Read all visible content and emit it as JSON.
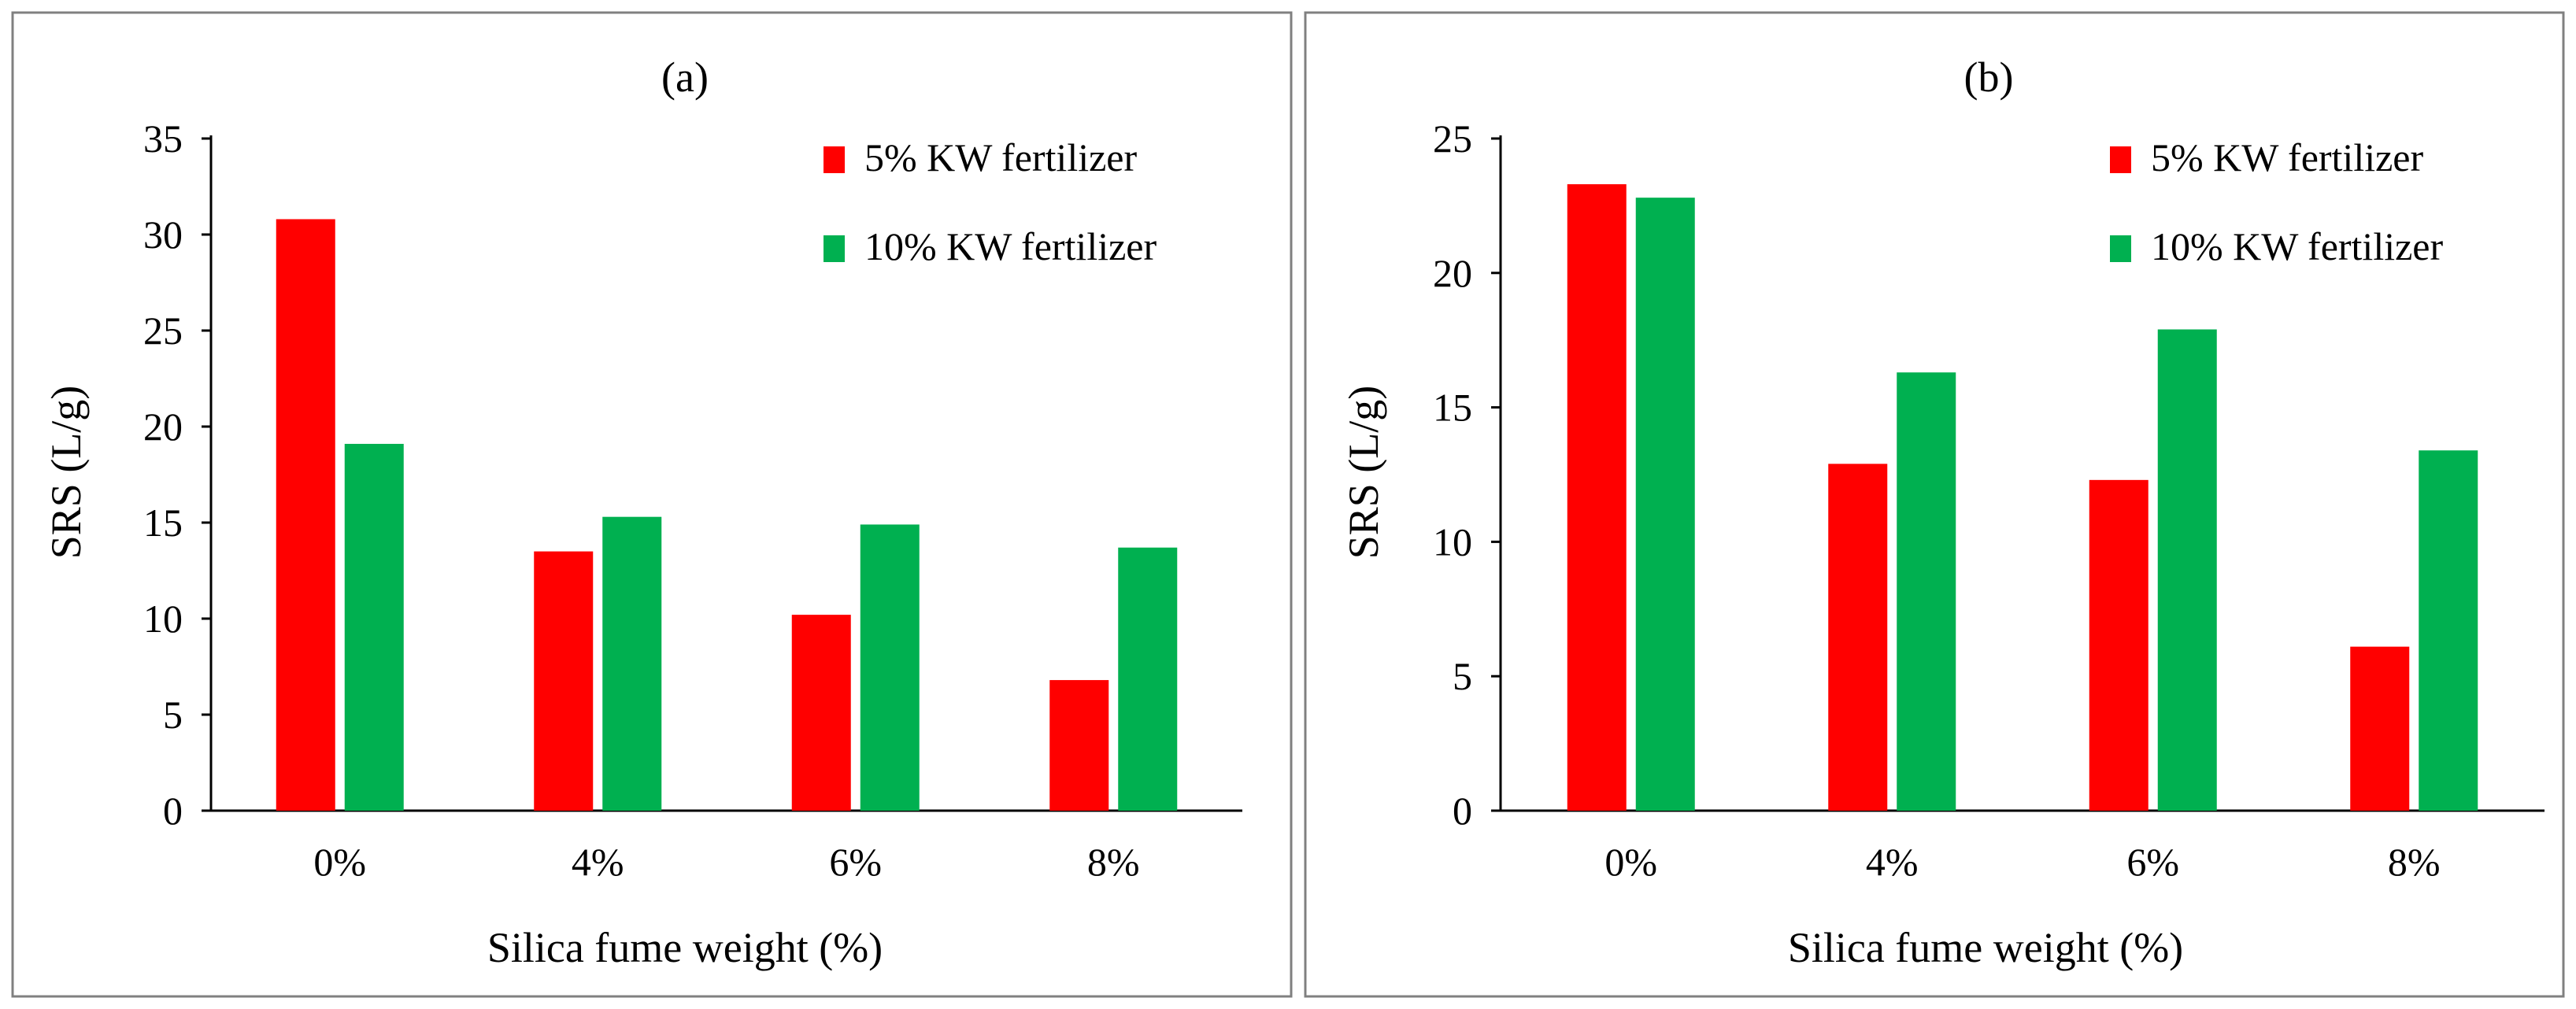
{
  "chart_data": [
    {
      "type": "bar",
      "title": "(a)",
      "xlabel": "Silica fume weight (%)",
      "ylabel": "SRS (L/g)",
      "categories": [
        "0%",
        "4%",
        "6%",
        "8%"
      ],
      "ylim": [
        0,
        35
      ],
      "yticks": [
        "0",
        "5",
        "10",
        "15",
        "20",
        "25",
        "30",
        "35"
      ],
      "ytick_values": [
        0,
        5,
        10,
        15,
        20,
        25,
        30,
        35
      ],
      "legend_position": "top-right",
      "grid": false,
      "series": [
        {
          "name": "5% KW fertilizer",
          "color": "#ff0000",
          "values": [
            30.8,
            13.5,
            10.2,
            6.8
          ]
        },
        {
          "name": "10% KW fertilizer",
          "color": "#00b050",
          "values": [
            19.1,
            15.3,
            14.9,
            13.7
          ]
        }
      ]
    },
    {
      "type": "bar",
      "title": "(b)",
      "xlabel": "Silica fume weight (%)",
      "ylabel": "SRS (L/g)",
      "categories": [
        "0%",
        "4%",
        "6%",
        "8%"
      ],
      "ylim": [
        0,
        25
      ],
      "yticks": [
        "0",
        "5",
        "10",
        "15",
        "20",
        "25"
      ],
      "ytick_values": [
        0,
        5,
        10,
        15,
        20,
        25
      ],
      "legend_position": "top-right",
      "grid": false,
      "series": [
        {
          "name": "5% KW fertilizer",
          "color": "#ff0000",
          "values": [
            23.3,
            12.9,
            12.3,
            6.1
          ]
        },
        {
          "name": "10% KW fertilizer",
          "color": "#00b050",
          "values": [
            22.8,
            16.3,
            17.9,
            13.4
          ]
        }
      ]
    }
  ]
}
